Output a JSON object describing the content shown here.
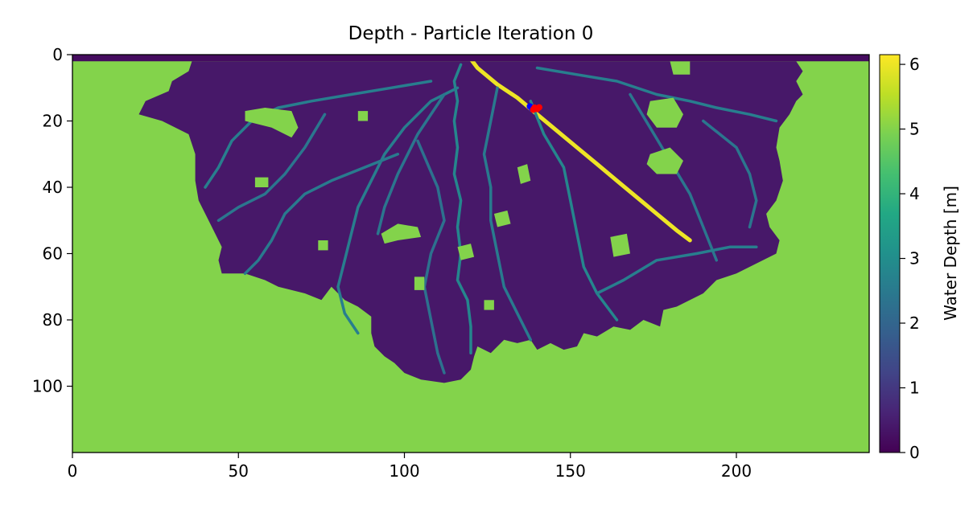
{
  "chart_data": {
    "type": "heatmap",
    "title": "Depth - Particle Iteration 0",
    "xlabel": "",
    "ylabel": "",
    "xlim": [
      0,
      240
    ],
    "ylim": [
      120,
      0
    ],
    "x_ticks": [
      0,
      50,
      100,
      150,
      200
    ],
    "y_ticks": [
      0,
      20,
      40,
      60,
      80,
      100
    ],
    "grid": false,
    "colormap": "viridis",
    "colorbar": {
      "label": "Water Depth [m]",
      "range": [
        0,
        6.15
      ],
      "ticks": [
        0,
        1,
        2,
        3,
        4,
        5,
        6
      ]
    },
    "background_depth": 5.0,
    "inlet_strip": {
      "y_range": [
        0,
        2
      ],
      "depth": 0.2
    },
    "delta_region": {
      "outline": [
        [
          36,
          2
        ],
        [
          35,
          5
        ],
        [
          30,
          8
        ],
        [
          29,
          11
        ],
        [
          22,
          14
        ],
        [
          20,
          18
        ],
        [
          27,
          20
        ],
        [
          35,
          24
        ],
        [
          37,
          30
        ],
        [
          37,
          38
        ],
        [
          38,
          44
        ],
        [
          42,
          52
        ],
        [
          45,
          58
        ],
        [
          44,
          62
        ],
        [
          45,
          66
        ],
        [
          52,
          66
        ],
        [
          58,
          68
        ],
        [
          62,
          70
        ],
        [
          70,
          72
        ],
        [
          75,
          74
        ],
        [
          78,
          70
        ],
        [
          82,
          74
        ],
        [
          86,
          76
        ],
        [
          90,
          79
        ],
        [
          90,
          84
        ],
        [
          91,
          88
        ],
        [
          94,
          91
        ],
        [
          97,
          93
        ],
        [
          100,
          96
        ],
        [
          105,
          98
        ],
        [
          112,
          99
        ],
        [
          117,
          98
        ],
        [
          120,
          95
        ],
        [
          121,
          91
        ],
        [
          122,
          88
        ],
        [
          126,
          90
        ],
        [
          130,
          86
        ],
        [
          134,
          87
        ],
        [
          138,
          86
        ],
        [
          140,
          89
        ],
        [
          144,
          87
        ],
        [
          148,
          89
        ],
        [
          152,
          88
        ],
        [
          154,
          84
        ],
        [
          158,
          85
        ],
        [
          163,
          82
        ],
        [
          168,
          83
        ],
        [
          172,
          80
        ],
        [
          177,
          82
        ],
        [
          178,
          77
        ],
        [
          182,
          76
        ],
        [
          186,
          74
        ],
        [
          190,
          72
        ],
        [
          194,
          68
        ],
        [
          200,
          66
        ],
        [
          204,
          64
        ],
        [
          208,
          62
        ],
        [
          212,
          60
        ],
        [
          213,
          56
        ],
        [
          210,
          52
        ],
        [
          209,
          48
        ],
        [
          212,
          44
        ],
        [
          214,
          38
        ],
        [
          213,
          32
        ],
        [
          212,
          28
        ],
        [
          213,
          22
        ],
        [
          216,
          18
        ],
        [
          218,
          14
        ],
        [
          220,
          12
        ],
        [
          218,
          8
        ],
        [
          220,
          5
        ],
        [
          218,
          2
        ]
      ],
      "mean_depth": 0.4
    },
    "channels": [
      {
        "name": "main",
        "depth": 6.0,
        "points": [
          [
            119,
            0
          ],
          [
            122,
            4
          ],
          [
            128,
            9
          ],
          [
            134,
            13
          ],
          [
            140,
            18
          ],
          [
            146,
            23
          ],
          [
            152,
            28
          ],
          [
            158,
            33
          ],
          [
            164,
            38
          ],
          [
            170,
            43
          ],
          [
            176,
            48
          ],
          [
            182,
            53
          ],
          [
            186,
            56
          ]
        ]
      },
      {
        "depth": 2.8,
        "points": [
          [
            117,
            3
          ],
          [
            115,
            8
          ],
          [
            116,
            14
          ],
          [
            115,
            20
          ],
          [
            116,
            28
          ],
          [
            115,
            36
          ],
          [
            117,
            44
          ],
          [
            116,
            52
          ],
          [
            117,
            60
          ],
          [
            116,
            68
          ],
          [
            119,
            74
          ],
          [
            120,
            82
          ],
          [
            120,
            90
          ]
        ]
      },
      {
        "depth": 2.6,
        "points": [
          [
            116,
            10
          ],
          [
            108,
            14
          ],
          [
            100,
            22
          ],
          [
            94,
            30
          ],
          [
            90,
            38
          ],
          [
            86,
            46
          ],
          [
            84,
            54
          ],
          [
            82,
            62
          ],
          [
            80,
            70
          ],
          [
            82,
            78
          ],
          [
            86,
            84
          ]
        ]
      },
      {
        "depth": 2.6,
        "points": [
          [
            108,
            8
          ],
          [
            96,
            10
          ],
          [
            84,
            12
          ],
          [
            72,
            14
          ],
          [
            62,
            16
          ],
          [
            54,
            20
          ],
          [
            48,
            26
          ],
          [
            44,
            34
          ],
          [
            40,
            40
          ]
        ]
      },
      {
        "depth": 2.4,
        "points": [
          [
            112,
            12
          ],
          [
            104,
            24
          ],
          [
            98,
            36
          ],
          [
            94,
            46
          ],
          [
            92,
            54
          ]
        ]
      },
      {
        "depth": 2.5,
        "points": [
          [
            98,
            30
          ],
          [
            88,
            34
          ],
          [
            78,
            38
          ],
          [
            70,
            42
          ],
          [
            64,
            48
          ],
          [
            60,
            56
          ],
          [
            56,
            62
          ],
          [
            52,
            66
          ]
        ]
      },
      {
        "depth": 2.5,
        "points": [
          [
            128,
            10
          ],
          [
            126,
            20
          ],
          [
            124,
            30
          ],
          [
            126,
            40
          ],
          [
            126,
            50
          ],
          [
            128,
            60
          ],
          [
            130,
            70
          ],
          [
            134,
            78
          ],
          [
            138,
            86
          ]
        ]
      },
      {
        "depth": 2.8,
        "points": [
          [
            138,
            14
          ],
          [
            142,
            24
          ],
          [
            148,
            34
          ],
          [
            150,
            44
          ],
          [
            152,
            54
          ],
          [
            154,
            64
          ],
          [
            158,
            72
          ],
          [
            164,
            80
          ]
        ]
      },
      {
        "depth": 2.6,
        "points": [
          [
            140,
            4
          ],
          [
            152,
            6
          ],
          [
            164,
            8
          ],
          [
            176,
            12
          ],
          [
            186,
            14
          ],
          [
            194,
            16
          ],
          [
            204,
            18
          ],
          [
            212,
            20
          ]
        ]
      },
      {
        "depth": 2.4,
        "points": [
          [
            168,
            12
          ],
          [
            174,
            22
          ],
          [
            180,
            32
          ],
          [
            186,
            42
          ],
          [
            190,
            52
          ],
          [
            194,
            62
          ]
        ]
      },
      {
        "depth": 2.6,
        "points": [
          [
            158,
            72
          ],
          [
            166,
            68
          ],
          [
            176,
            62
          ],
          [
            188,
            60
          ],
          [
            198,
            58
          ],
          [
            206,
            58
          ]
        ]
      },
      {
        "depth": 2.4,
        "points": [
          [
            76,
            18
          ],
          [
            70,
            28
          ],
          [
            64,
            36
          ],
          [
            58,
            42
          ],
          [
            50,
            46
          ],
          [
            44,
            50
          ]
        ]
      },
      {
        "depth": 2.3,
        "points": [
          [
            104,
            26
          ],
          [
            110,
            40
          ],
          [
            112,
            50
          ],
          [
            108,
            60
          ],
          [
            106,
            70
          ],
          [
            108,
            80
          ],
          [
            110,
            90
          ],
          [
            112,
            96
          ]
        ]
      },
      {
        "depth": 2.4,
        "points": [
          [
            190,
            20
          ],
          [
            200,
            28
          ],
          [
            204,
            36
          ],
          [
            206,
            44
          ],
          [
            204,
            52
          ]
        ]
      }
    ],
    "dry_patches": [
      {
        "depth": 5.0,
        "outline": [
          [
            52,
            17
          ],
          [
            58,
            16
          ],
          [
            66,
            17
          ],
          [
            68,
            22
          ],
          [
            66,
            25
          ],
          [
            60,
            22
          ],
          [
            52,
            20
          ]
        ]
      },
      {
        "depth": 5.0,
        "outline": [
          [
            93,
            54
          ],
          [
            98,
            51
          ],
          [
            104,
            52
          ],
          [
            105,
            55
          ],
          [
            98,
            56
          ],
          [
            94,
            57
          ]
        ]
      },
      {
        "depth": 5.0,
        "outline": [
          [
            174,
            14
          ],
          [
            181,
            13
          ],
          [
            184,
            18
          ],
          [
            182,
            22
          ],
          [
            176,
            22
          ],
          [
            173,
            18
          ]
        ]
      },
      {
        "depth": 5.0,
        "outline": [
          [
            174,
            30
          ],
          [
            180,
            28
          ],
          [
            184,
            32
          ],
          [
            182,
            36
          ],
          [
            176,
            36
          ],
          [
            173,
            33
          ]
        ]
      },
      {
        "depth": 5.0,
        "outline": [
          [
            180,
            2
          ],
          [
            186,
            2
          ],
          [
            186,
            6
          ],
          [
            181,
            6
          ]
        ]
      },
      {
        "depth": 5.0,
        "outline": [
          [
            162,
            55
          ],
          [
            167,
            54
          ],
          [
            168,
            60
          ],
          [
            163,
            61
          ]
        ]
      },
      {
        "depth": 5.0,
        "outline": [
          [
            134,
            34
          ],
          [
            137,
            33
          ],
          [
            138,
            38
          ],
          [
            135,
            39
          ]
        ]
      },
      {
        "depth": 5.0,
        "outline": [
          [
            55,
            37
          ],
          [
            59,
            37
          ],
          [
            59,
            40
          ],
          [
            55,
            40
          ]
        ]
      },
      {
        "depth": 5.0,
        "outline": [
          [
            127,
            48
          ],
          [
            131,
            47
          ],
          [
            132,
            51
          ],
          [
            128,
            52
          ]
        ]
      },
      {
        "depth": 5.0,
        "outline": [
          [
            116,
            58
          ],
          [
            120,
            57
          ],
          [
            121,
            61
          ],
          [
            117,
            62
          ]
        ]
      },
      {
        "depth": 5.0,
        "outline": [
          [
            103,
            67
          ],
          [
            106,
            67
          ],
          [
            106,
            71
          ],
          [
            103,
            71
          ]
        ]
      },
      {
        "depth": 5.0,
        "outline": [
          [
            124,
            74
          ],
          [
            127,
            74
          ],
          [
            127,
            77
          ],
          [
            124,
            77
          ]
        ]
      },
      {
        "depth": 5.0,
        "outline": [
          [
            86,
            17
          ],
          [
            89,
            17
          ],
          [
            89,
            20
          ],
          [
            86,
            20
          ]
        ]
      },
      {
        "depth": 5.0,
        "outline": [
          [
            74,
            56
          ],
          [
            77,
            56
          ],
          [
            77,
            59
          ],
          [
            74,
            59
          ]
        ]
      }
    ],
    "particles": [
      {
        "x": 137.8,
        "y": 15.6,
        "color": "#0000ff"
      },
      {
        "x": 138.4,
        "y": 16.2,
        "color": "#0000ff"
      },
      {
        "x": 139.2,
        "y": 16.0,
        "color": "#ff0000"
      },
      {
        "x": 140.0,
        "y": 16.4,
        "color": "#ff0000"
      },
      {
        "x": 138.8,
        "y": 16.6,
        "color": "#ff0000"
      },
      {
        "x": 140.6,
        "y": 15.9,
        "color": "#ff0000"
      }
    ]
  }
}
